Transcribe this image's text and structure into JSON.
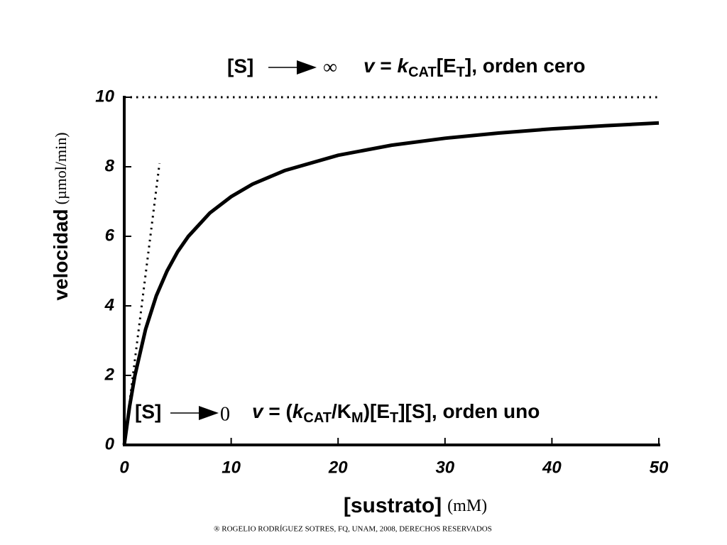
{
  "chart_data": {
    "type": "line",
    "annotation_top": {
      "limit": "[S]",
      "target": "∞",
      "formula": [
        "v",
        " = ",
        "k",
        "CAT",
        "[E",
        "T",
        "], orden cero"
      ]
    },
    "annotation_bottom": {
      "limit": "[S]",
      "target": "0",
      "formula": [
        "v",
        " = (",
        "k",
        "CAT",
        "/K",
        "M",
        ")[E",
        "T",
        "][S], orden uno"
      ]
    },
    "y_label": {
      "main": "velocidad",
      "unit": "(µmol/min)"
    },
    "x_label": {
      "main": "[sustrato]",
      "unit": "(mM)"
    },
    "footer": "® ROGELIO RODRÍGUEZ SOTRES, FQ, UNAM, 2008, DERECHOS RESERVADOS",
    "xlim": [
      0,
      50
    ],
    "xticks": [
      0,
      10,
      20,
      30,
      40,
      50
    ],
    "ylim": [
      0,
      10
    ],
    "yticks": [
      0,
      2,
      4,
      6,
      8,
      10
    ],
    "series": [
      {
        "color": "#000000",
        "dotted": false,
        "x": [
          0,
          0.5,
          1,
          2,
          3,
          4,
          5,
          6,
          8,
          10,
          12,
          15,
          20,
          25,
          30,
          35,
          40,
          45,
          50
        ],
        "y": [
          0,
          1.11,
          2.0,
          3.33,
          4.29,
          5.0,
          5.56,
          6.0,
          6.67,
          7.14,
          7.5,
          7.89,
          8.33,
          8.62,
          8.82,
          8.97,
          9.09,
          9.18,
          9.26
        ]
      },
      {
        "color": "#000000",
        "dotted": true,
        "x": [
          0,
          3.3
        ],
        "y": [
          0,
          8.1
        ]
      },
      {
        "color": "#000000",
        "dotted": true,
        "x": [
          0,
          50
        ],
        "y": [
          10,
          10
        ]
      }
    ]
  }
}
